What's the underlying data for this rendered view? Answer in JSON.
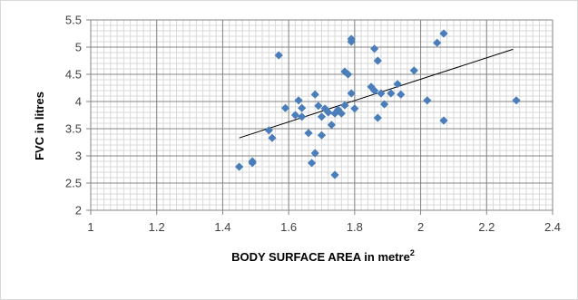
{
  "chart_data": {
    "type": "scatter",
    "title": "",
    "xlabel": "BODY SURFACE AREA in metre",
    "xlabel_superscript": "2",
    "ylabel": "FVC in litres",
    "xlim": [
      1,
      2.4
    ],
    "ylim": [
      2,
      5.5
    ],
    "x_major_ticks": [
      "1",
      "1.2",
      "1.4",
      "1.6",
      "1.8",
      "2",
      "2.2",
      "2.4"
    ],
    "y_major_ticks": [
      "2",
      "2.5",
      "3",
      "3.5",
      "4",
      "4.5",
      "5",
      "5.5"
    ],
    "x_minor_step": 0.02,
    "y_minor_step": 0.1,
    "grid": true,
    "legend": "none",
    "marker": "diamond",
    "marker_color": "#4a7ebb",
    "trendline": {
      "type": "linear",
      "color": "#000000",
      "x": [
        1.45,
        2.28
      ],
      "y": [
        3.33,
        4.96
      ]
    },
    "points": [
      {
        "x": 1.45,
        "y": 2.8
      },
      {
        "x": 1.49,
        "y": 2.87
      },
      {
        "x": 1.49,
        "y": 2.9
      },
      {
        "x": 1.54,
        "y": 3.47
      },
      {
        "x": 1.55,
        "y": 3.33
      },
      {
        "x": 1.57,
        "y": 4.85
      },
      {
        "x": 1.59,
        "y": 3.88
      },
      {
        "x": 1.62,
        "y": 3.75
      },
      {
        "x": 1.63,
        "y": 4.02
      },
      {
        "x": 1.64,
        "y": 3.72
      },
      {
        "x": 1.64,
        "y": 3.88
      },
      {
        "x": 1.66,
        "y": 3.42
      },
      {
        "x": 1.67,
        "y": 2.87
      },
      {
        "x": 1.68,
        "y": 4.13
      },
      {
        "x": 1.68,
        "y": 3.05
      },
      {
        "x": 1.69,
        "y": 3.92
      },
      {
        "x": 1.7,
        "y": 3.38
      },
      {
        "x": 1.7,
        "y": 3.72
      },
      {
        "x": 1.71,
        "y": 3.87
      },
      {
        "x": 1.72,
        "y": 3.8
      },
      {
        "x": 1.73,
        "y": 3.57
      },
      {
        "x": 1.74,
        "y": 2.65
      },
      {
        "x": 1.74,
        "y": 3.78
      },
      {
        "x": 1.75,
        "y": 3.85
      },
      {
        "x": 1.76,
        "y": 3.78
      },
      {
        "x": 1.77,
        "y": 3.93
      },
      {
        "x": 1.77,
        "y": 4.55
      },
      {
        "x": 1.78,
        "y": 4.5
      },
      {
        "x": 1.79,
        "y": 5.15
      },
      {
        "x": 1.79,
        "y": 5.1
      },
      {
        "x": 1.79,
        "y": 4.15
      },
      {
        "x": 1.8,
        "y": 3.87
      },
      {
        "x": 1.85,
        "y": 4.27
      },
      {
        "x": 1.86,
        "y": 4.2
      },
      {
        "x": 1.86,
        "y": 4.97
      },
      {
        "x": 1.87,
        "y": 4.75
      },
      {
        "x": 1.87,
        "y": 3.7
      },
      {
        "x": 1.88,
        "y": 4.15
      },
      {
        "x": 1.89,
        "y": 3.95
      },
      {
        "x": 1.91,
        "y": 4.15
      },
      {
        "x": 1.93,
        "y": 4.32
      },
      {
        "x": 1.94,
        "y": 4.13
      },
      {
        "x": 1.98,
        "y": 4.57
      },
      {
        "x": 2.02,
        "y": 4.02
      },
      {
        "x": 2.05,
        "y": 5.08
      },
      {
        "x": 2.07,
        "y": 5.25
      },
      {
        "x": 2.07,
        "y": 3.65
      },
      {
        "x": 2.29,
        "y": 4.02
      }
    ]
  }
}
